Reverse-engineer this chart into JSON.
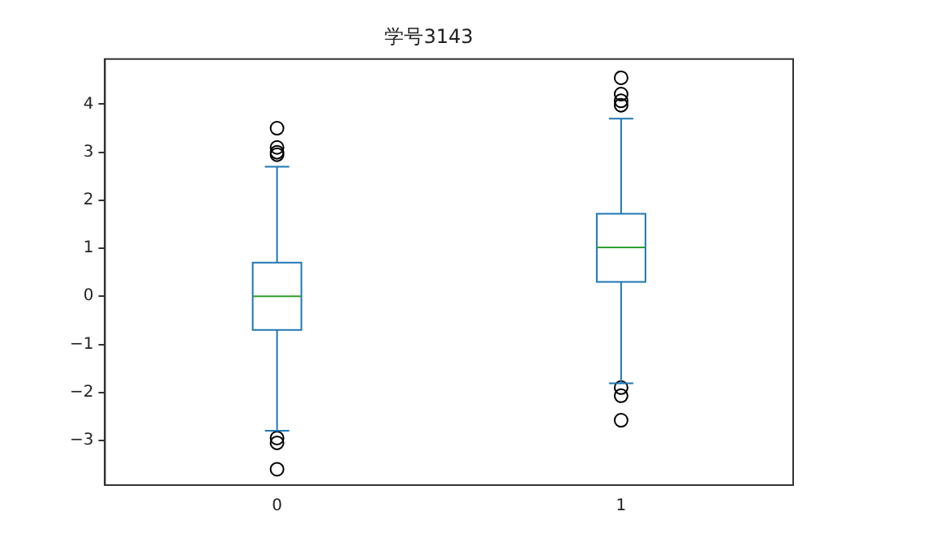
{
  "chart_data": {
    "type": "box",
    "title": "学号3143",
    "categories": [
      "0",
      "1"
    ],
    "color": "#1f77b4",
    "boxes": [
      {
        "low": -2.8,
        "q1": -0.7,
        "median": 0,
        "q3": 0.7,
        "high": 2.7,
        "outliers": [
          3.5,
          3.1,
          3.0,
          2.95,
          -2.95,
          -3.05,
          -3.6
        ]
      },
      {
        "low": -1.81,
        "q1": 0.3,
        "median": 1.02,
        "q3": 1.72,
        "high": 3.7,
        "outliers": [
          4.55,
          4.21,
          4.07,
          3.98,
          -1.9,
          -2.07,
          -2.58
        ]
      }
    ],
    "ylim": [
      -3.93,
      4.94
    ],
    "yticks": [
      -3,
      -2,
      -1,
      0,
      1,
      2,
      3,
      4
    ],
    "grid": false,
    "legend": false,
    "marker": "circle"
  }
}
